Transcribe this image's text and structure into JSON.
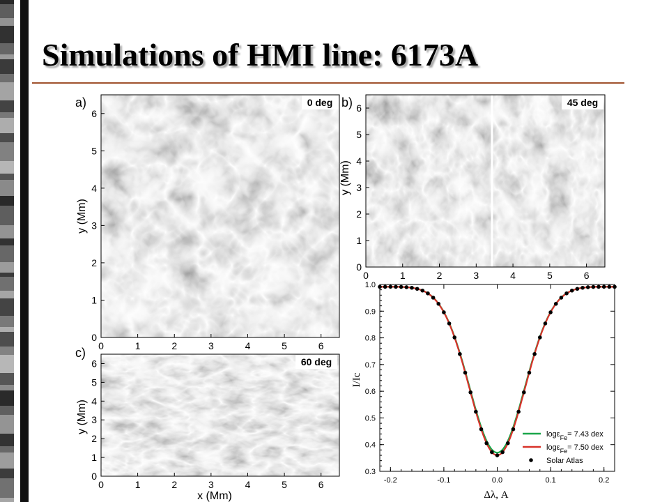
{
  "slide": {
    "title": "Simulations of HMI line: 6173A"
  },
  "colors": {
    "title_rule": "#a0522d",
    "fit_green": "#1aa64a",
    "fit_red": "#d8322a",
    "atlas_dots": "#000000"
  },
  "panels": {
    "a": {
      "label": "a)",
      "angle": "0 deg",
      "ylabel": "y (Mm)",
      "xticks": [
        "0",
        "1",
        "2",
        "3",
        "4",
        "5",
        "6"
      ],
      "yticks": [
        "0",
        "1",
        "2",
        "3",
        "4",
        "5",
        "6"
      ]
    },
    "b": {
      "label": "b)",
      "angle": "45 deg",
      "ylabel": "y (Mm)",
      "xticks": [
        "0",
        "1",
        "2",
        "3",
        "4",
        "5",
        "6"
      ],
      "yticks": [
        "0",
        "1",
        "2",
        "3",
        "4",
        "5",
        "6"
      ]
    },
    "c": {
      "label": "c)",
      "angle": "60 deg",
      "ylabel": "y (Mm)",
      "xlabel": "x (Mm)",
      "xticks": [
        "0",
        "1",
        "2",
        "3",
        "4",
        "5",
        "6"
      ],
      "yticks": [
        "0",
        "1",
        "2",
        "3",
        "4",
        "5",
        "6"
      ]
    }
  },
  "chart_data": {
    "type": "line",
    "xlabel": "Δλ, A",
    "ylabel": "I/Ic",
    "xlim": [
      -0.22,
      0.22
    ],
    "ylim": [
      0.3,
      1.0
    ],
    "xticks": [
      "-0.2",
      "-0.1",
      "0.0",
      "0.1",
      "0.2"
    ],
    "yticks": [
      "0.3",
      "0.4",
      "0.5",
      "0.6",
      "0.7",
      "0.8",
      "0.9",
      "1.0"
    ],
    "grid": false,
    "legend_position": "bottom-right",
    "model": {
      "depth": 0.63,
      "center": 0.0,
      "sigma": 0.052
    },
    "series": [
      {
        "name_prefix": "logε",
        "name_sub": "Fe",
        "name_suffix": "= 7.43 dex",
        "color": "#1aa64a",
        "min": 0.37
      },
      {
        "name_prefix": "logε",
        "name_sub": "Fe",
        "name_suffix": "= 7.50 dex",
        "color": "#d8322a",
        "min": 0.36
      },
      {
        "name": "Solar Atlas",
        "style": "dots",
        "color": "#000000",
        "min": 0.36
      }
    ]
  }
}
